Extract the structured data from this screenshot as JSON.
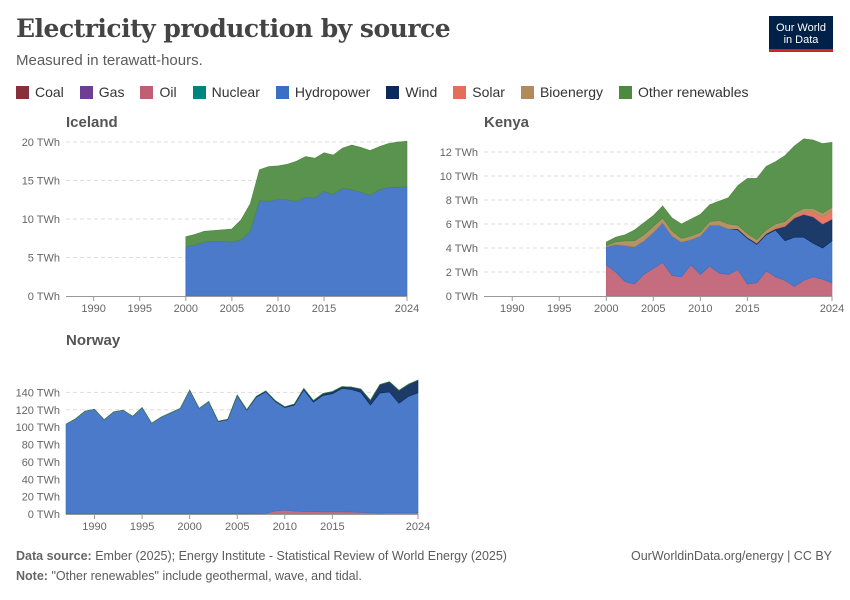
{
  "header": {
    "title": "Electricity production by source",
    "subtitle": "Measured in terawatt-hours.",
    "logo_line1": "Our World",
    "logo_line2": "in Data"
  },
  "legend": [
    {
      "label": "Coal",
      "color": "#883039"
    },
    {
      "label": "Gas",
      "color": "#6d3e91"
    },
    {
      "label": "Oil",
      "color": "#c05f74"
    },
    {
      "label": "Nuclear",
      "color": "#00847e"
    },
    {
      "label": "Hydropower",
      "color": "#3b6fc4"
    },
    {
      "label": "Wind",
      "color": "#0a2a5c"
    },
    {
      "label": "Solar",
      "color": "#e56e5a"
    },
    {
      "label": "Bioenergy",
      "color": "#b08a5a"
    },
    {
      "label": "Other renewables",
      "color": "#4c8a3f"
    }
  ],
  "footer": {
    "source_label": "Data source:",
    "source_text": "Ember (2025); Energy Institute - Statistical Review of World Energy (2025)",
    "note_label": "Note:",
    "note_text": "\"Other renewables\" include geothermal, wave, and tidal.",
    "right_text": "OurWorldinData.org/energy | CC BY"
  },
  "chart_data": [
    {
      "type": "area",
      "title": "Iceland",
      "unit": "TWh",
      "ylim": [
        0,
        20
      ],
      "yticks": [
        0,
        5,
        10,
        15,
        20
      ],
      "ytick_labels": [
        "0 TWh",
        "5 TWh",
        "10 TWh",
        "15 TWh",
        "20 TWh"
      ],
      "xlim": [
        1987,
        2024
      ],
      "xticks": [
        1990,
        1995,
        2000,
        2005,
        2010,
        2015,
        2024
      ],
      "x": [
        2000,
        2001,
        2002,
        2003,
        2004,
        2005,
        2006,
        2007,
        2008,
        2009,
        2010,
        2011,
        2012,
        2013,
        2014,
        2015,
        2016,
        2017,
        2018,
        2019,
        2020,
        2021,
        2022,
        2023,
        2024
      ],
      "series": [
        {
          "name": "Hydropower",
          "color": "#3b6fc4",
          "values": [
            6.4,
            6.6,
            7.0,
            7.1,
            7.1,
            7.0,
            7.3,
            8.4,
            12.4,
            12.3,
            12.6,
            12.5,
            12.3,
            12.8,
            12.7,
            13.6,
            13.2,
            14.0,
            13.8,
            13.5,
            13.1,
            13.8,
            14.1,
            14.1,
            14.2
          ]
        },
        {
          "name": "Other renewables",
          "color": "#4c8a3f",
          "values": [
            1.3,
            1.4,
            1.4,
            1.4,
            1.5,
            1.7,
            2.6,
            3.6,
            4.0,
            4.5,
            4.3,
            4.6,
            5.2,
            5.3,
            5.2,
            5.0,
            5.1,
            5.2,
            5.8,
            5.8,
            5.8,
            5.6,
            5.7,
            5.9,
            5.9
          ]
        }
      ]
    },
    {
      "type": "area",
      "title": "Kenya",
      "unit": "TWh",
      "ylim": [
        0,
        12
      ],
      "yticks": [
        0,
        2,
        4,
        6,
        8,
        10,
        12
      ],
      "ytick_labels": [
        "0 TWh",
        "2 TWh",
        "4 TWh",
        "6 TWh",
        "8 TWh",
        "10 TWh",
        "12 TWh"
      ],
      "xlim": [
        1987,
        2024
      ],
      "xticks": [
        1990,
        1995,
        2000,
        2005,
        2010,
        2015,
        2024
      ],
      "x": [
        2000,
        2001,
        2002,
        2003,
        2004,
        2005,
        2006,
        2007,
        2008,
        2009,
        2010,
        2011,
        2012,
        2013,
        2014,
        2015,
        2016,
        2017,
        2018,
        2019,
        2020,
        2021,
        2022,
        2023,
        2024
      ],
      "series": [
        {
          "name": "Oil",
          "color": "#c05f74",
          "values": [
            2.6,
            2.0,
            1.2,
            1.0,
            1.8,
            2.3,
            2.8,
            1.7,
            1.6,
            2.6,
            1.8,
            2.5,
            1.9,
            1.8,
            2.2,
            1.0,
            1.1,
            2.1,
            1.6,
            1.3,
            0.8,
            1.3,
            1.6,
            1.4,
            1.1
          ]
        },
        {
          "name": "Hydropower",
          "color": "#3b6fc4",
          "values": [
            1.5,
            2.3,
            3.0,
            3.1,
            2.8,
            3.0,
            3.3,
            3.3,
            2.9,
            2.1,
            3.2,
            3.4,
            4.0,
            3.8,
            3.3,
            3.8,
            3.2,
            3.0,
            3.9,
            3.3,
            4.1,
            3.6,
            2.8,
            2.6,
            3.5
          ]
        },
        {
          "name": "Wind",
          "color": "#0a2a5c",
          "values": [
            0.0,
            0.0,
            0.0,
            0.0,
            0.0,
            0.0,
            0.0,
            0.0,
            0.0,
            0.0,
            0.0,
            0.0,
            0.0,
            0.0,
            0.1,
            0.1,
            0.1,
            0.1,
            0.1,
            1.2,
            1.6,
            1.9,
            2.2,
            2.0,
            1.8
          ]
        },
        {
          "name": "Solar",
          "color": "#e56e5a",
          "values": [
            0.0,
            0.0,
            0.0,
            0.0,
            0.0,
            0.0,
            0.0,
            0.0,
            0.0,
            0.0,
            0.0,
            0.0,
            0.0,
            0.0,
            0.0,
            0.0,
            0.0,
            0.0,
            0.1,
            0.1,
            0.1,
            0.2,
            0.4,
            0.6,
            0.7
          ]
        },
        {
          "name": "Bioenergy",
          "color": "#b08a5a",
          "values": [
            0.1,
            0.2,
            0.4,
            0.5,
            0.5,
            0.5,
            0.4,
            0.4,
            0.3,
            0.3,
            0.3,
            0.3,
            0.4,
            0.4,
            0.3,
            0.3,
            0.3,
            0.3,
            0.3,
            0.3,
            0.3,
            0.3,
            0.3,
            0.3,
            0.3
          ]
        },
        {
          "name": "Other renewables",
          "color": "#4c8a3f",
          "values": [
            0.3,
            0.4,
            0.5,
            0.9,
            1.0,
            0.9,
            1.0,
            1.1,
            1.2,
            1.4,
            1.5,
            1.4,
            1.6,
            2.2,
            3.3,
            4.6,
            5.1,
            5.3,
            5.2,
            5.5,
            5.6,
            5.8,
            5.7,
            5.8,
            5.4
          ]
        }
      ]
    },
    {
      "type": "area",
      "title": "Norway",
      "unit": "TWh",
      "ylim": [
        0,
        160
      ],
      "yticks": [
        0,
        20,
        40,
        60,
        80,
        100,
        120,
        140
      ],
      "ytick_labels": [
        "0 TWh",
        "20 TWh",
        "40 TWh",
        "60 TWh",
        "80 TWh",
        "100 TWh",
        "120 TWh",
        "140 TWh"
      ],
      "xlim": [
        1987,
        2024
      ],
      "xticks": [
        1990,
        1995,
        2000,
        2005,
        2010,
        2015,
        2024
      ],
      "x": [
        1987,
        1988,
        1989,
        1990,
        1991,
        1992,
        1993,
        1994,
        1995,
        1996,
        1997,
        1998,
        1999,
        2000,
        2001,
        2002,
        2003,
        2004,
        2005,
        2006,
        2007,
        2008,
        2009,
        2010,
        2011,
        2012,
        2013,
        2014,
        2015,
        2016,
        2017,
        2018,
        2019,
        2020,
        2021,
        2022,
        2023,
        2024
      ],
      "series": [
        {
          "name": "Oil",
          "color": "#c05f74",
          "values": [
            0.5,
            0.5,
            0.5,
            0.5,
            0.5,
            0.5,
            0.5,
            0.5,
            0.5,
            0.5,
            0.5,
            0.5,
            0.5,
            0.5,
            0.5,
            0.5,
            0.5,
            0.5,
            0.5,
            0.5,
            0.6,
            0.8,
            3.5,
            4.5,
            3.3,
            3.0,
            2.8,
            2.5,
            2.5,
            2.5,
            2.3,
            2.0,
            1.5,
            1.2,
            1.5,
            1.5,
            1.5,
            1.5
          ]
        },
        {
          "name": "Hydropower",
          "color": "#3b6fc4",
          "values": [
            103,
            109,
            118,
            120,
            108,
            117,
            119,
            112,
            122,
            104,
            111,
            116,
            121,
            142,
            121,
            129,
            106,
            108,
            136,
            119,
            134,
            140,
            126,
            118,
            122,
            140,
            126,
            134,
            136,
            142,
            141,
            138,
            124,
            138,
            139,
            126,
            134,
            138
          ]
        },
        {
          "name": "Wind",
          "color": "#0a2a5c",
          "values": [
            0,
            0,
            0,
            0,
            0,
            0,
            0,
            0,
            0,
            0,
            0,
            0,
            0,
            0,
            0,
            0,
            0.3,
            0.5,
            0.5,
            0.6,
            0.9,
            0.9,
            1.0,
            0.9,
            1.3,
            1.6,
            1.9,
            2.2,
            2.5,
            2.1,
            2.9,
            3.9,
            5.5,
            9.9,
            11.8,
            14.8,
            13.9,
            14.6
          ]
        },
        {
          "name": "Other renewables",
          "color": "#4c8a3f",
          "values": [
            0,
            0,
            0,
            0,
            0,
            0,
            0,
            0,
            0,
            0,
            0,
            0,
            0,
            0,
            0,
            0,
            0,
            0,
            0,
            0,
            0,
            0,
            0,
            0,
            0,
            0,
            0,
            0,
            0,
            0,
            0,
            0,
            0,
            0,
            0,
            0,
            0,
            0
          ]
        }
      ]
    }
  ]
}
